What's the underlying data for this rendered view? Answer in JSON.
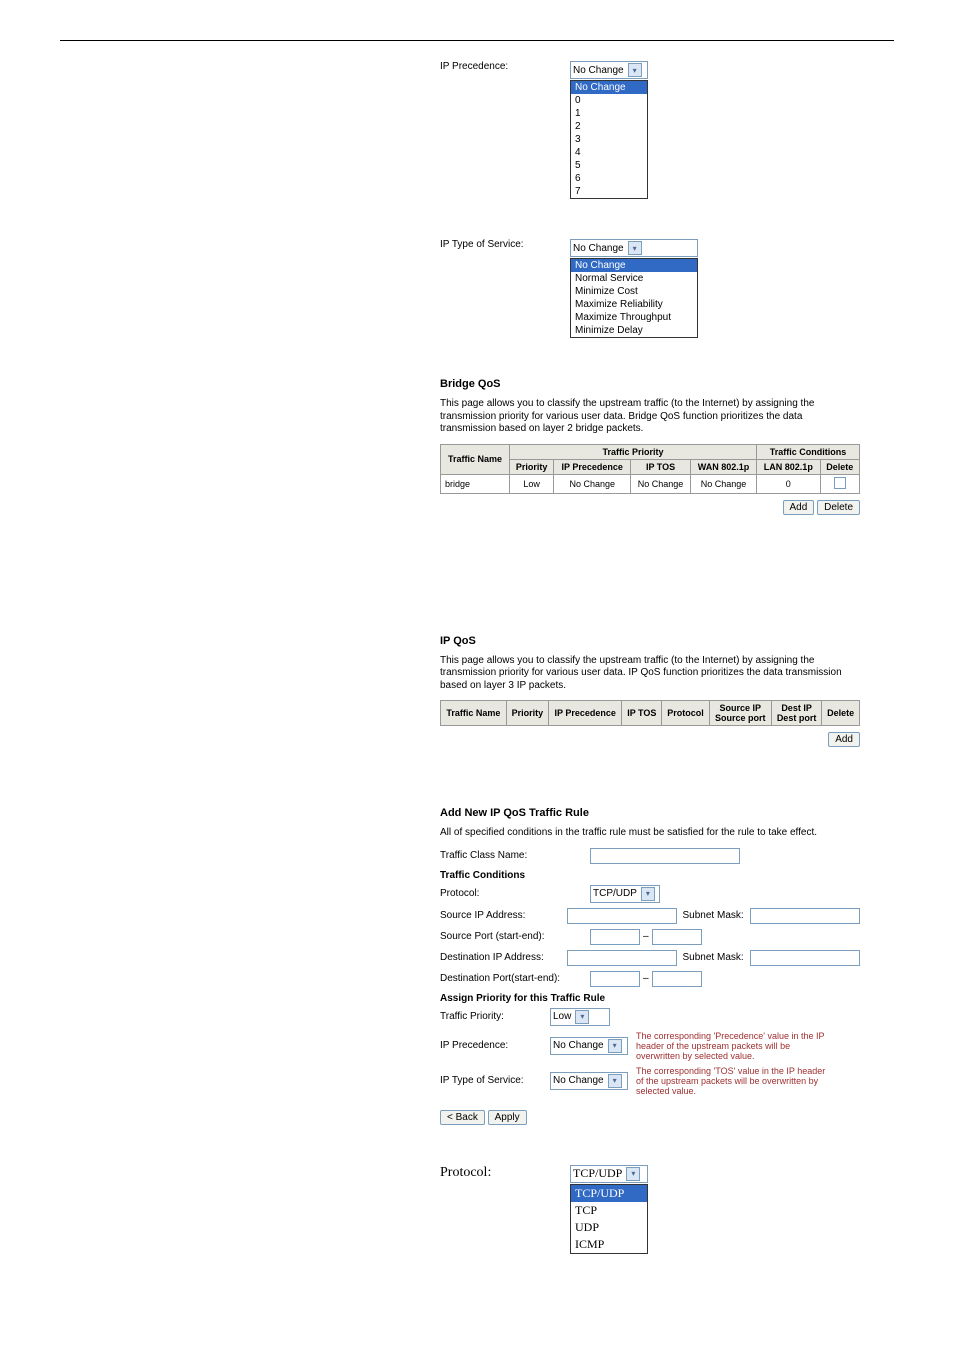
{
  "colors": {
    "select_highlight": "#316ac5",
    "button_border": "#7b9ebd",
    "table_border": "#999999",
    "table_header_bg": "#e8e8e0",
    "hint_text": "#a03030"
  },
  "ip_precedence": {
    "label": "IP Precedence:",
    "selected": "No Change",
    "options": [
      "No Change",
      "0",
      "1",
      "2",
      "3",
      "4",
      "5",
      "6",
      "7"
    ]
  },
  "ip_tos": {
    "label": "IP Type of Service:",
    "selected": "No Change",
    "options": [
      "No Change",
      "Normal Service",
      "Minimize Cost",
      "Maximize Reliability",
      "Maximize Throughput",
      "Minimize Delay"
    ]
  },
  "bridge_qos": {
    "title": "Bridge QoS",
    "desc": "This page allows you to classify the upstream traffic (to the Internet) by assigning the transmission priority for various user data. Bridge QoS function prioritizes the data transmission based on layer 2 bridge packets.",
    "group_headers": {
      "priority": "Traffic Priority",
      "conditions": "Traffic Conditions"
    },
    "columns": [
      "Traffic Name",
      "Priority",
      "IP Precedence",
      "IP TOS",
      "WAN 802.1p",
      "LAN 802.1p",
      "Delete"
    ],
    "rows": [
      {
        "name": "bridge",
        "priority": "Low",
        "ip_precedence": "No Change",
        "ip_tos": "No Change",
        "wan_8021p": "No Change",
        "lan_8021p": "0"
      }
    ],
    "buttons": {
      "add": "Add",
      "delete": "Delete"
    }
  },
  "ip_qos": {
    "title": "IP QoS",
    "desc": "This page allows you to classify the upstream traffic (to the Internet) by assigning the transmission priority for various user data. IP QoS function prioritizes the data transmission based on layer 3 IP packets.",
    "columns": [
      "Traffic Name",
      "Priority",
      "IP Precedence",
      "IP TOS",
      "Protocol",
      "Source IP Source port",
      "Dest IP Dest port",
      "Delete"
    ],
    "col_source_l1": "Source IP",
    "col_source_l2": "Source port",
    "col_dest_l1": "Dest IP",
    "col_dest_l2": "Dest port",
    "buttons": {
      "add": "Add"
    }
  },
  "add_rule": {
    "title": "Add New IP QoS Traffic Rule",
    "subtitle": "All of specified conditions in the traffic rule must be satisfied for the rule to take effect.",
    "traffic_class_name_label": "Traffic Class Name:",
    "conditions_header": "Traffic Conditions",
    "protocol": {
      "label": "Protocol:",
      "value": "TCP/UDP"
    },
    "source_ip": {
      "label": "Source IP Address:",
      "value": ""
    },
    "subnet_mask_label": "Subnet Mask:",
    "source_port": {
      "label": "Source Port (start-end):",
      "sep": "–"
    },
    "dest_ip": {
      "label": "Destination IP Address:",
      "value": ""
    },
    "dest_port": {
      "label": "Destination Port(start-end):",
      "sep": "–"
    },
    "assign_header": "Assign Priority for this Traffic Rule",
    "traffic_priority": {
      "label": "Traffic Priority:",
      "value": "Low"
    },
    "ip_precedence_field": {
      "label": "IP Precedence:",
      "value": "No Change",
      "hint": "The corresponding 'Precedence' value in the IP header of the upstream packets will be overwritten by selected value."
    },
    "ip_tos_field": {
      "label": "IP Type of Service:",
      "value": "No Change",
      "hint": "The corresponding 'TOS' value in the IP header of the upstream packets will be overwritten by selected value."
    },
    "buttons": {
      "back": "< Back",
      "apply": "Apply"
    }
  },
  "protocol_dropdown": {
    "label": "Protocol:",
    "selected": "TCP/UDP",
    "options": [
      "TCP/UDP",
      "TCP",
      "UDP",
      "ICMP"
    ]
  }
}
